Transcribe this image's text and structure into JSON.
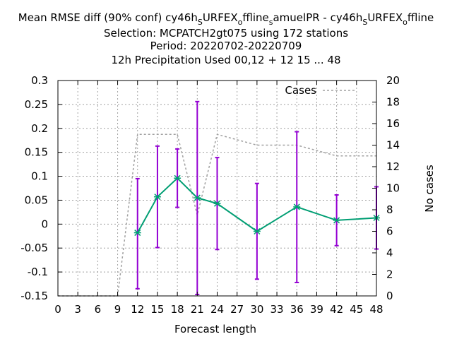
{
  "chart_data": {
    "type": "line",
    "title_lines": [
      "Mean RMSE diff (90% conf) cy46h_SURFEX_offline_samuelPR - cy46h_SURFEX_offline",
      "Selection: MCPATCH2gt075 using   172 stations",
      "Period: 20220702-20220709",
      "12h Precipitation   Used  00,12  + 12 15 ... 48"
    ],
    "xlabel": "Forecast length",
    "ylabel": "",
    "y2label": "No cases",
    "xlim": [
      0,
      48
    ],
    "ylim": [
      -0.15,
      0.3
    ],
    "y2lim": [
      0,
      20
    ],
    "x_ticks": [
      0,
      3,
      6,
      9,
      12,
      15,
      18,
      21,
      24,
      27,
      30,
      33,
      36,
      39,
      42,
      45,
      48
    ],
    "y_ticks": [
      -0.15,
      -0.1,
      -0.05,
      0,
      0.05,
      0.1,
      0.15,
      0.2,
      0.25,
      0.3
    ],
    "y_tick_labels": [
      "-0.15",
      "-0.1",
      "-0.05",
      "0",
      "0.05",
      "0.1",
      "0.15",
      "0.2",
      "0.25",
      "0.3"
    ],
    "y2_ticks": [
      0,
      2,
      4,
      6,
      8,
      10,
      12,
      14,
      16,
      18,
      20
    ],
    "grid": true,
    "legend_position": "top-right",
    "series": [
      {
        "kind": "errorbar-line",
        "color": "#009e73",
        "bar_color": "#9400d3",
        "x": [
          12,
          15,
          18,
          21,
          24,
          30,
          36,
          42,
          48
        ],
        "y": [
          -0.018,
          0.057,
          0.096,
          0.055,
          0.043,
          -0.015,
          0.036,
          0.008,
          0.013
        ],
        "low": [
          -0.135,
          -0.049,
          0.035,
          -0.147,
          -0.053,
          -0.115,
          -0.122,
          -0.045,
          -0.052
        ],
        "high": [
          0.095,
          0.163,
          0.157,
          0.256,
          0.139,
          0.085,
          0.193,
          0.061,
          0.078
        ]
      },
      {
        "name": "Cases",
        "kind": "cases",
        "axis": "y2",
        "color": "#a0a0a0",
        "x": [
          0,
          3,
          6,
          9,
          12,
          15,
          18,
          21,
          24,
          30,
          36,
          42,
          48
        ],
        "y": [
          0,
          0,
          0,
          0,
          15,
          15,
          15,
          7.5,
          15,
          14,
          14,
          13,
          13
        ]
      }
    ]
  }
}
